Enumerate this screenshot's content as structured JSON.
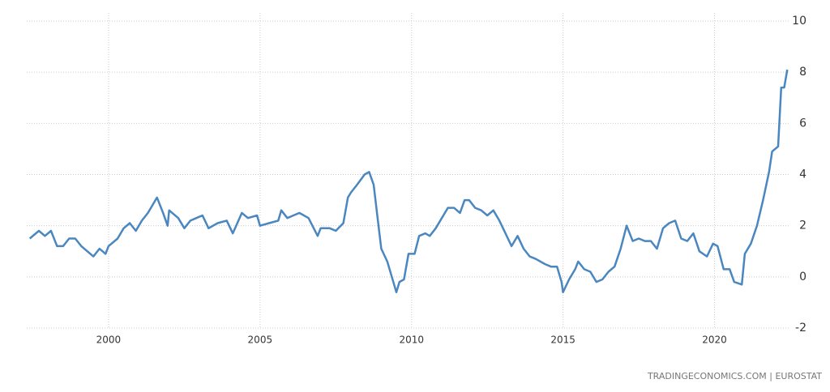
{
  "chart_data": {
    "type": "line",
    "x": [
      1997.4,
      1997.7,
      1997.9,
      1998.1,
      1998.3,
      1998.5,
      1998.7,
      1998.9,
      1999.1,
      1999.3,
      1999.5,
      1999.7,
      1999.9,
      2000.0,
      2000.3,
      2000.5,
      2000.7,
      2000.9,
      2001.1,
      2001.3,
      2001.6,
      2001.8,
      2001.95,
      2002.0,
      2002.3,
      2002.5,
      2002.7,
      2002.9,
      2003.1,
      2003.3,
      2003.6,
      2003.9,
      2004.1,
      2004.4,
      2004.6,
      2004.9,
      2005.0,
      2005.3,
      2005.6,
      2005.7,
      2005.9,
      2006.1,
      2006.3,
      2006.6,
      2006.9,
      2007.0,
      2007.3,
      2007.5,
      2007.75,
      2007.9,
      2008.0,
      2008.2,
      2008.45,
      2008.6,
      2008.75,
      2008.9,
      2009.0,
      2009.2,
      2009.35,
      2009.5,
      2009.6,
      2009.75,
      2009.9,
      2010.1,
      2010.25,
      2010.45,
      2010.6,
      2010.8,
      2011.0,
      2011.2,
      2011.4,
      2011.6,
      2011.75,
      2011.9,
      2012.1,
      2012.3,
      2012.5,
      2012.7,
      2012.9,
      2013.1,
      2013.3,
      2013.5,
      2013.7,
      2013.9,
      2014.1,
      2014.4,
      2014.6,
      2014.8,
      2014.95,
      2015.0,
      2015.2,
      2015.4,
      2015.5,
      2015.7,
      2015.9,
      2016.1,
      2016.3,
      2016.5,
      2016.7,
      2016.9,
      2017.1,
      2017.3,
      2017.5,
      2017.7,
      2017.9,
      2018.1,
      2018.3,
      2018.5,
      2018.7,
      2018.9,
      2019.1,
      2019.3,
      2019.5,
      2019.75,
      2019.95,
      2020.1,
      2020.3,
      2020.5,
      2020.65,
      2020.9,
      2021.0,
      2021.2,
      2021.4,
      2021.6,
      2021.8,
      2021.9,
      2022.1,
      2022.2,
      2022.3,
      2022.4
    ],
    "series": [
      {
        "color": "#4a86c0",
        "values": [
          1.5,
          1.8,
          1.6,
          1.8,
          1.2,
          1.2,
          1.5,
          1.5,
          1.2,
          1.0,
          0.8,
          1.1,
          0.9,
          1.2,
          1.5,
          1.9,
          2.1,
          1.8,
          2.2,
          2.5,
          3.1,
          2.5,
          2.0,
          2.6,
          2.3,
          1.9,
          2.2,
          2.3,
          2.4,
          1.9,
          2.1,
          2.2,
          1.7,
          2.5,
          2.3,
          2.4,
          2.0,
          2.1,
          2.2,
          2.6,
          2.3,
          2.4,
          2.5,
          2.3,
          1.6,
          1.9,
          1.9,
          1.8,
          2.1,
          3.1,
          3.3,
          3.6,
          4.0,
          4.1,
          3.6,
          2.1,
          1.1,
          0.6,
          0.0,
          -0.6,
          -0.2,
          -0.1,
          0.9,
          0.9,
          1.6,
          1.7,
          1.6,
          1.9,
          2.3,
          2.7,
          2.7,
          2.5,
          3.0,
          3.0,
          2.7,
          2.6,
          2.4,
          2.6,
          2.2,
          1.7,
          1.2,
          1.6,
          1.1,
          0.8,
          0.7,
          0.5,
          0.4,
          0.4,
          -0.2,
          -0.6,
          -0.1,
          0.3,
          0.6,
          0.3,
          0.2,
          -0.2,
          -0.1,
          0.2,
          0.4,
          1.1,
          2.0,
          1.4,
          1.5,
          1.4,
          1.4,
          1.1,
          1.9,
          2.1,
          2.2,
          1.5,
          1.4,
          1.7,
          1.0,
          0.8,
          1.3,
          1.2,
          0.3,
          0.3,
          -0.2,
          -0.3,
          0.9,
          1.3,
          2.0,
          3.0,
          4.1,
          4.9,
          5.1,
          7.4,
          7.4,
          8.1
        ]
      }
    ],
    "xlim": [
      1997.3,
      2022.5
    ],
    "xticks": [
      2000,
      2005,
      2010,
      2015,
      2020
    ],
    "ylim": [
      -2,
      10
    ],
    "yticks": [
      -2,
      0,
      2,
      4,
      6,
      8,
      10
    ],
    "grid": true,
    "source": "TRADINGECONOMICS.COM | EUROSTAT"
  }
}
